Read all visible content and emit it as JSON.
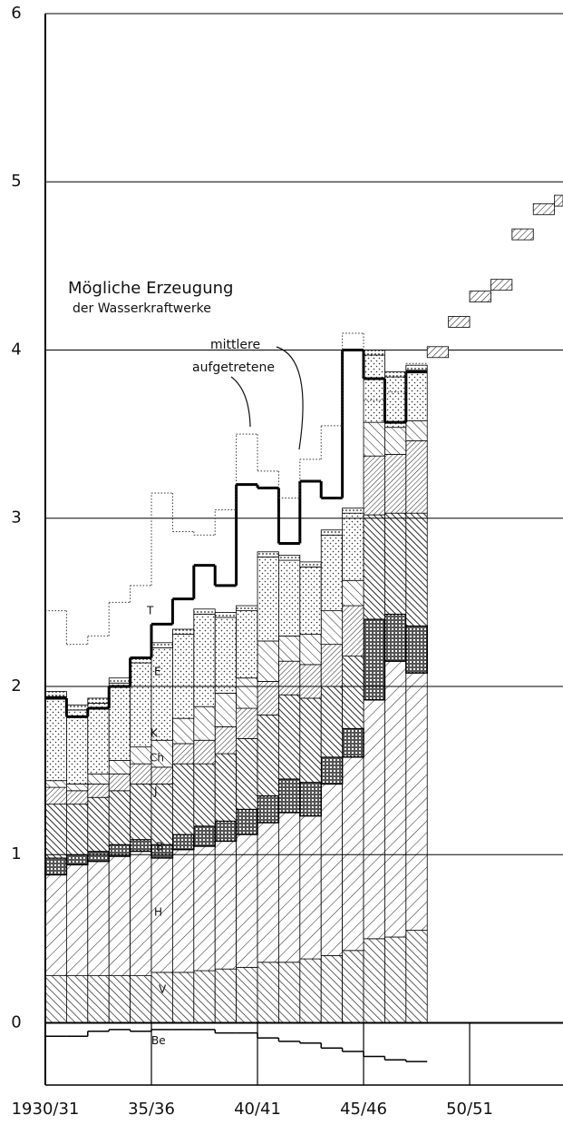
{
  "chart_data": {
    "type": "stacked-step",
    "title": "Mögliche Erzeugung",
    "subtitle": "der Wasserkraftwerke",
    "annotations": [
      "mittlere",
      "aufgetretene"
    ],
    "x": [
      0,
      1,
      2,
      3,
      4,
      5,
      6,
      7,
      8,
      9,
      10,
      11,
      12,
      13,
      14,
      15,
      16,
      17
    ],
    "series": [
      {
        "name": "V",
        "color": "#000000",
        "values": [
          0.28,
          0.28,
          0.28,
          0.28,
          0.28,
          0.3,
          0.3,
          0.31,
          0.32,
          0.33,
          0.36,
          0.36,
          0.38,
          0.4,
          0.43,
          0.5,
          0.51,
          0.55
        ]
      },
      {
        "name": "H",
        "color": "#000000",
        "values": [
          0.6,
          0.66,
          0.68,
          0.71,
          0.74,
          0.68,
          0.73,
          0.74,
          0.76,
          0.79,
          0.83,
          0.89,
          0.85,
          1.02,
          1.15,
          1.42,
          1.64,
          1.53
        ]
      },
      {
        "name": "B",
        "color": "#000000",
        "values": [
          0.1,
          0.06,
          0.06,
          0.07,
          0.07,
          0.08,
          0.09,
          0.12,
          0.12,
          0.15,
          0.16,
          0.2,
          0.2,
          0.16,
          0.17,
          0.48,
          0.28,
          0.28
        ]
      },
      {
        "name": "J",
        "color": "#000000",
        "values": [
          0.32,
          0.3,
          0.32,
          0.32,
          0.33,
          0.36,
          0.42,
          0.37,
          0.4,
          0.42,
          0.48,
          0.5,
          0.5,
          0.42,
          0.43,
          0.62,
          0.6,
          0.67
        ]
      },
      {
        "name": "Ch",
        "color": "#000000",
        "values": [
          0.1,
          0.08,
          0.08,
          0.1,
          0.12,
          0.1,
          0.12,
          0.14,
          0.16,
          0.18,
          0.2,
          0.2,
          0.2,
          0.25,
          0.3,
          0.35,
          0.35,
          0.43
        ]
      },
      {
        "name": "K",
        "color": "#000000",
        "values": [
          0.04,
          0.04,
          0.06,
          0.08,
          0.1,
          0.16,
          0.15,
          0.2,
          0.2,
          0.18,
          0.24,
          0.15,
          0.18,
          0.2,
          0.15,
          0.2,
          0.16,
          0.12
        ]
      },
      {
        "name": "E",
        "color": "#000000",
        "values": [
          0.5,
          0.44,
          0.42,
          0.46,
          0.5,
          0.55,
          0.5,
          0.55,
          0.45,
          0.4,
          0.5,
          0.45,
          0.4,
          0.45,
          0.4,
          0.4,
          0.3,
          0.3
        ]
      },
      {
        "name": "T",
        "color": "#000000",
        "values": [
          0.03,
          0.03,
          0.03,
          0.03,
          0.03,
          0.03,
          0.03,
          0.03,
          0.03,
          0.03,
          0.03,
          0.03,
          0.03,
          0.03,
          0.03,
          0.03,
          0.03,
          0.03
        ]
      }
    ],
    "lines": [
      {
        "name": "mittlere",
        "style": "solid",
        "values": [
          1.93,
          1.82,
          1.87,
          2.0,
          2.17,
          2.37,
          2.52,
          2.72,
          2.6,
          3.2,
          3.18,
          2.85,
          3.22,
          3.12,
          4.0,
          3.83,
          3.57,
          3.87
        ]
      },
      {
        "name": "aufgetretene",
        "style": "dotted",
        "values": [
          2.45,
          2.25,
          2.3,
          2.5,
          2.6,
          3.15,
          2.92,
          2.9,
          3.05,
          3.5,
          3.28,
          3.12,
          3.35,
          3.55,
          4.1,
          3.7,
          3.75,
          3.92
        ]
      }
    ],
    "projection": {
      "x": [
        18,
        19,
        20,
        21,
        22,
        23,
        24
      ],
      "values": [
        4.02,
        4.2,
        4.35,
        4.42,
        4.72,
        4.87,
        4.92
      ]
    },
    "negative": {
      "name": "Be",
      "values": [
        -0.08,
        -0.08,
        -0.05,
        -0.04,
        -0.05,
        -0.04,
        -0.04,
        -0.04,
        -0.06,
        -0.06,
        -0.09,
        -0.11,
        -0.12,
        -0.15,
        -0.17,
        -0.2,
        -0.22,
        -0.23
      ]
    },
    "xlim": [
      0,
      24.4
    ],
    "xticks": [
      {
        "value": 0,
        "label": "1930/31"
      },
      {
        "value": 5,
        "label": "35/36"
      },
      {
        "value": 10,
        "label": "40/41"
      },
      {
        "value": 15,
        "label": "45/46"
      },
      {
        "value": 20,
        "label": "50/51"
      }
    ],
    "ylim": [
      -0.37,
      6
    ],
    "yticks": [
      0,
      1,
      2,
      3,
      4,
      5,
      6
    ],
    "grid": true
  }
}
